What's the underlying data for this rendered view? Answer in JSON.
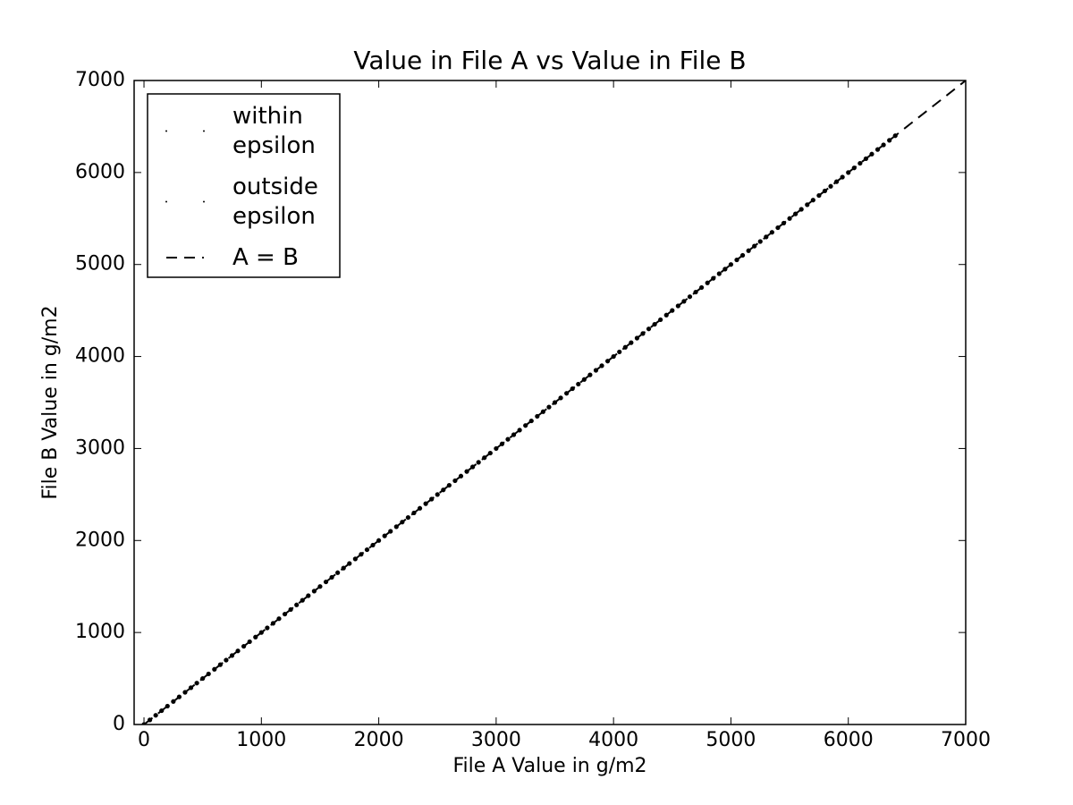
{
  "chart_data": {
    "type": "scatter",
    "title": "Value in File A vs Value in File B",
    "x_label": "File A Value in g/m2",
    "y_label": "File B Value in g/m2",
    "xlim": [
      -84,
      7000
    ],
    "ylim": [
      0,
      7000
    ],
    "xticks": [
      0,
      1000,
      2000,
      3000,
      4000,
      5000,
      6000,
      7000
    ],
    "yticks": [
      0,
      1000,
      2000,
      3000,
      4000,
      5000,
      6000,
      7000
    ],
    "legend": "upper left",
    "series": [
      {
        "name": "within epsilon",
        "kind": "scatter",
        "color": "#000000",
        "x": [
          0,
          50,
          100,
          150,
          200,
          250,
          300,
          350,
          400,
          450,
          500,
          550,
          600,
          650,
          700,
          750,
          800,
          850,
          900,
          950,
          1000,
          1050,
          1100,
          1150,
          1200,
          1250,
          1300,
          1350,
          1400,
          1450,
          1500,
          1550,
          1600,
          1650,
          1700,
          1750,
          1800,
          1850,
          1900,
          1950,
          2000,
          2050,
          2100,
          2150,
          2200,
          2250,
          2300,
          2350,
          2400,
          2450,
          2500,
          2550,
          2600,
          2650,
          2700,
          2750,
          2800,
          2850,
          2900,
          2950,
          3000,
          3050,
          3100,
          3150,
          3200,
          3250,
          3300,
          3350,
          3400,
          3450,
          3500,
          3550,
          3600,
          3650,
          3700,
          3750,
          3800,
          3850,
          3900,
          3950,
          4000,
          4050,
          4100,
          4150,
          4200,
          4250,
          4300,
          4350,
          4400,
          4450,
          4500,
          4550,
          4600,
          4650,
          4700,
          4750,
          4800,
          4850,
          4900,
          4950,
          5000,
          5050,
          5100,
          5150,
          5200,
          5250,
          5300,
          5350,
          5400,
          5450,
          5500,
          5550,
          5600,
          5650,
          5700,
          5750,
          5800,
          5850,
          5900,
          5950,
          6000,
          6050,
          6100,
          6150,
          6200,
          6250,
          6300,
          6350,
          6400
        ],
        "values": [
          0,
          50,
          100,
          150,
          200,
          250,
          300,
          350,
          400,
          450,
          500,
          550,
          600,
          650,
          700,
          750,
          800,
          850,
          900,
          950,
          1000,
          1050,
          1100,
          1150,
          1200,
          1250,
          1300,
          1350,
          1400,
          1450,
          1500,
          1550,
          1600,
          1650,
          1700,
          1750,
          1800,
          1850,
          1900,
          1950,
          2000,
          2050,
          2100,
          2150,
          2200,
          2250,
          2300,
          2350,
          2400,
          2450,
          2500,
          2550,
          2600,
          2650,
          2700,
          2750,
          2800,
          2850,
          2900,
          2950,
          3000,
          3050,
          3100,
          3150,
          3200,
          3250,
          3300,
          3350,
          3400,
          3450,
          3500,
          3550,
          3600,
          3650,
          3700,
          3750,
          3800,
          3850,
          3900,
          3950,
          4000,
          4050,
          4100,
          4150,
          4200,
          4250,
          4300,
          4350,
          4400,
          4450,
          4500,
          4550,
          4600,
          4650,
          4700,
          4750,
          4800,
          4850,
          4900,
          4950,
          5000,
          5050,
          5100,
          5150,
          5200,
          5250,
          5300,
          5350,
          5400,
          5450,
          5500,
          5550,
          5600,
          5650,
          5700,
          5750,
          5800,
          5850,
          5900,
          5950,
          6000,
          6050,
          6100,
          6150,
          6200,
          6250,
          6300,
          6350,
          6400
        ]
      },
      {
        "name": "outside epsilon",
        "kind": "scatter",
        "color": "#000000",
        "x": [],
        "values": []
      },
      {
        "name": "A = B",
        "kind": "line",
        "dashed": true,
        "color": "#000000",
        "x": [
          0,
          7000
        ],
        "values": [
          0,
          7000
        ]
      }
    ]
  }
}
